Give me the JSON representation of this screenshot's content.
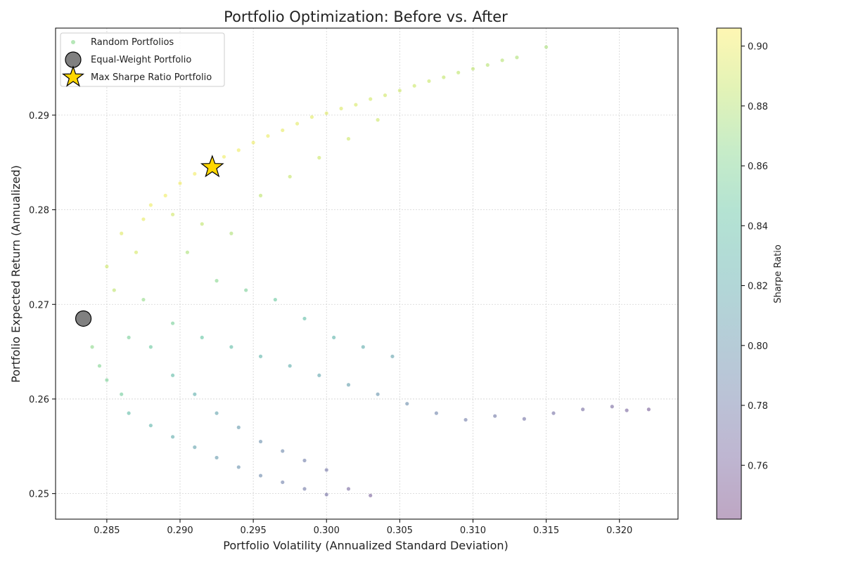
{
  "chart_data": {
    "type": "scatter",
    "title": "Portfolio Optimization: Before vs. After",
    "xlabel": "Portfolio Volatility (Annualized Standard Deviation)",
    "ylabel": "Portfolio Expected Return (Annualized)",
    "xlim": [
      0.2815,
      0.324
    ],
    "ylim": [
      0.2473,
      0.2992
    ],
    "xticks": [
      0.285,
      0.29,
      0.295,
      0.3,
      0.305,
      0.31,
      0.315,
      0.32
    ],
    "xtick_labels": [
      "0.285",
      "0.290",
      "0.295",
      "0.300",
      "0.305",
      "0.310",
      "0.315",
      "0.320"
    ],
    "yticks": [
      0.25,
      0.26,
      0.27,
      0.28,
      0.29
    ],
    "ytick_labels": [
      "0.25",
      "0.26",
      "0.27",
      "0.28",
      "0.29"
    ],
    "grid": true,
    "legend_position": "top-left",
    "colormap": "viridis",
    "colorbar": {
      "label": "Sharpe Ratio",
      "range": [
        0.742,
        0.906
      ],
      "ticks": [
        0.76,
        0.78,
        0.8,
        0.82,
        0.84,
        0.86,
        0.88,
        0.9
      ],
      "tick_labels": [
        "0.76",
        "0.78",
        "0.80",
        "0.82",
        "0.84",
        "0.86",
        "0.88",
        "0.90"
      ]
    },
    "series": [
      {
        "name": "Random Portfolios",
        "marker": "circle",
        "color": "#5ec962",
        "x": [
          0.2835,
          0.284,
          0.2845,
          0.285,
          0.286,
          0.2855,
          0.285,
          0.287,
          0.286,
          0.2875,
          0.288,
          0.289,
          0.29,
          0.291,
          0.292,
          0.293,
          0.294,
          0.295,
          0.296,
          0.297,
          0.298,
          0.299,
          0.3,
          0.301,
          0.302,
          0.303,
          0.304,
          0.305,
          0.306,
          0.307,
          0.308,
          0.309,
          0.31,
          0.311,
          0.312,
          0.313,
          0.315,
          0.2865,
          0.288,
          0.2895,
          0.291,
          0.2925,
          0.294,
          0.2955,
          0.297,
          0.2985,
          0.3,
          0.2865,
          0.288,
          0.2895,
          0.291,
          0.2925,
          0.294,
          0.2955,
          0.297,
          0.2985,
          0.3,
          0.3015,
          0.303,
          0.2875,
          0.2895,
          0.2915,
          0.2935,
          0.2955,
          0.2975,
          0.2995,
          0.3015,
          0.3035,
          0.3055,
          0.3075,
          0.3095,
          0.3115,
          0.3135,
          0.3155,
          0.3175,
          0.3195,
          0.3205,
          0.322,
          0.2905,
          0.2925,
          0.2945,
          0.2965,
          0.2985,
          0.3005,
          0.3025,
          0.3045,
          0.2895,
          0.2915,
          0.2935,
          0.2955,
          0.2975,
          0.2995,
          0.3015,
          0.3035
        ],
        "y": [
          0.2685,
          0.2655,
          0.2635,
          0.262,
          0.2605,
          0.2715,
          0.274,
          0.2755,
          0.2775,
          0.279,
          0.2805,
          0.2815,
          0.2828,
          0.2838,
          0.2848,
          0.2856,
          0.2863,
          0.2871,
          0.2878,
          0.2884,
          0.2891,
          0.2898,
          0.2902,
          0.2907,
          0.2911,
          0.2917,
          0.2921,
          0.2926,
          0.2931,
          0.2936,
          0.294,
          0.2945,
          0.2949,
          0.2953,
          0.2958,
          0.2961,
          0.2972,
          0.2585,
          0.2572,
          0.256,
          0.2549,
          0.2538,
          0.2528,
          0.2519,
          0.2512,
          0.2505,
          0.2499,
          0.2665,
          0.2655,
          0.2625,
          0.2605,
          0.2585,
          0.257,
          0.2555,
          0.2545,
          0.2535,
          0.2525,
          0.2505,
          0.2498,
          0.2705,
          0.268,
          0.2665,
          0.2655,
          0.2645,
          0.2635,
          0.2625,
          0.2615,
          0.2605,
          0.2595,
          0.2585,
          0.2578,
          0.2582,
          0.2579,
          0.2585,
          0.2589,
          0.2592,
          0.2588,
          0.2589,
          0.2755,
          0.2725,
          0.2715,
          0.2705,
          0.2685,
          0.2665,
          0.2655,
          0.2645,
          0.2795,
          0.2785,
          0.2775,
          0.2815,
          0.2835,
          0.2855,
          0.2875,
          0.2895
        ],
        "sharpe": [
          0.872,
          0.866,
          0.861,
          0.857,
          0.852,
          0.883,
          0.889,
          0.892,
          0.895,
          0.898,
          0.9,
          0.901,
          0.902,
          0.902,
          0.902,
          0.901,
          0.901,
          0.9,
          0.899,
          0.898,
          0.897,
          0.896,
          0.895,
          0.894,
          0.893,
          0.891,
          0.89,
          0.889,
          0.888,
          0.887,
          0.885,
          0.884,
          0.883,
          0.881,
          0.88,
          0.878,
          0.876,
          0.835,
          0.828,
          0.82,
          0.812,
          0.804,
          0.797,
          0.79,
          0.783,
          0.777,
          0.771,
          0.855,
          0.848,
          0.835,
          0.824,
          0.813,
          0.804,
          0.795,
          0.788,
          0.781,
          0.774,
          0.765,
          0.76,
          0.868,
          0.855,
          0.845,
          0.837,
          0.829,
          0.822,
          0.815,
          0.808,
          0.8,
          0.793,
          0.786,
          0.78,
          0.777,
          0.772,
          0.771,
          0.768,
          0.765,
          0.762,
          0.758,
          0.877,
          0.864,
          0.856,
          0.848,
          0.838,
          0.828,
          0.82,
          0.812,
          0.89,
          0.884,
          0.878,
          0.883,
          0.886,
          0.888,
          0.889,
          0.889
        ]
      },
      {
        "name": "Equal-Weight Portfolio",
        "marker": "circle-large",
        "color": "#808080",
        "x": [
          0.2834
        ],
        "y": [
          0.2685
        ]
      },
      {
        "name": "Max Sharpe Ratio Portfolio",
        "marker": "star",
        "color": "#ffd700",
        "x": [
          0.2922
        ],
        "y": [
          0.2845
        ]
      }
    ]
  }
}
